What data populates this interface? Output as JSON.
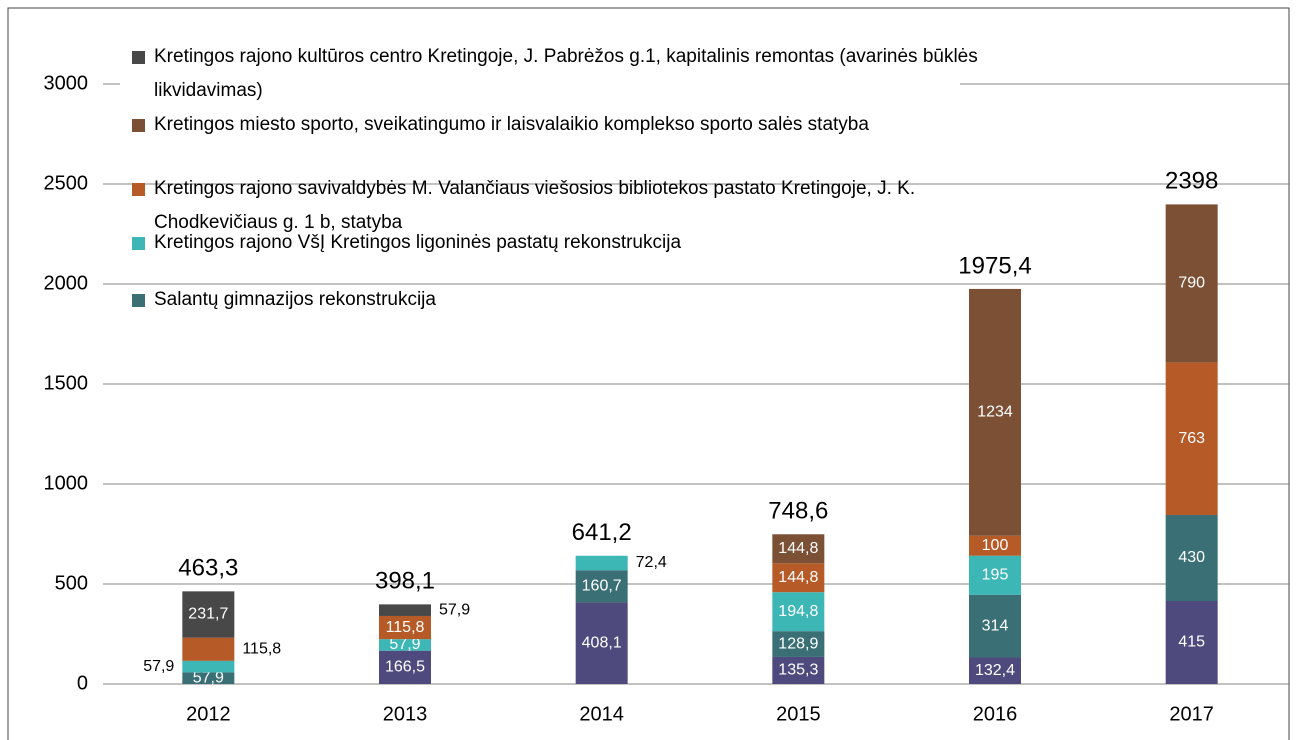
{
  "chart_data": {
    "type": "stacked_bar",
    "categories": [
      "2012",
      "2013",
      "2014",
      "2015",
      "2016",
      "2017"
    ],
    "ylim": [
      0,
      3000
    ],
    "yticks": [
      0,
      500,
      1000,
      1500,
      2000,
      2500,
      3000
    ],
    "grid": true,
    "series": [
      {
        "color": "#4e4a7e",
        "values": [
          null,
          166.5,
          408.1,
          135.3,
          132.4,
          415
        ],
        "value_labels": [
          null,
          "166,5",
          "408,1",
          "135,3",
          "132,4",
          "415"
        ]
      },
      {
        "name": "Salantų gimnazijos rekonstrukcija",
        "color": "#3b6f76",
        "values": [
          57.9,
          null,
          160.7,
          128.9,
          314,
          430
        ],
        "value_labels": [
          "57,9",
          null,
          "160,7",
          "128,9",
          "314",
          "430"
        ]
      },
      {
        "name": "Kretingos rajono VšĮ Kretingos ligoninės pastatų rekonstrukcija",
        "color": "#3db6b6",
        "values": [
          57.9,
          57.9,
          72.4,
          194.8,
          195,
          null
        ],
        "value_labels": [
          "57,9",
          "57,9",
          "72,4",
          "194,8",
          "195",
          null
        ]
      },
      {
        "name": "Kretingos rajono savivaldybės M. Valančiaus viešosios bibliotekos pastato Kretingoje, J. K. Chodkevičiaus g. 1 b, statyba",
        "color": "#b65a27",
        "values": [
          115.8,
          115.8,
          null,
          144.8,
          100,
          763
        ],
        "value_labels": [
          "115,8",
          "115,8",
          null,
          "144,8",
          "100",
          "763"
        ]
      },
      {
        "name": "Kretingos miesto sporto, sveikatingumo ir laisvalaikio komplekso sporto salės statyba",
        "color": "#7b5035",
        "values": [
          null,
          null,
          null,
          144.8,
          1234,
          790
        ],
        "value_labels": [
          null,
          null,
          null,
          "144,8",
          "1234",
          "790"
        ]
      },
      {
        "name": "Kretingos rajono kultūros centro Kretingoje, J. Pabrėžos g.1, kapitalinis remontas (avarinės būklės likvidavimas)",
        "color": "#484848",
        "values": [
          231.7,
          57.9,
          null,
          null,
          null,
          null
        ],
        "value_labels": [
          "231,7",
          "57,9",
          null,
          null,
          null,
          null
        ]
      }
    ],
    "totals": [
      463.3,
      398.1,
      641.2,
      748.6,
      1975.4,
      2398
    ],
    "total_labels": [
      "463,3",
      "398,1",
      "641,2",
      "748,6",
      "1975,4",
      "2398"
    ],
    "legend": "top-left"
  }
}
